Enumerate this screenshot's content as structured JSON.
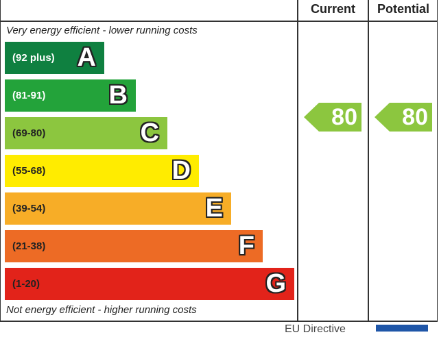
{
  "columns": {
    "current": "Current",
    "potential": "Potential"
  },
  "notes": {
    "top": "Very energy efficient - lower running costs",
    "bottom": "Not energy efficient - higher running costs"
  },
  "footer": {
    "partial_text": "EU Directive"
  },
  "chart_data": {
    "type": "bar",
    "title": "",
    "categories": [
      "A",
      "B",
      "C",
      "D",
      "E",
      "F",
      "G"
    ],
    "ranges": [
      "(92 plus)",
      "(81-91)",
      "(69-80)",
      "(55-68)",
      "(39-54)",
      "(21-38)",
      "(1-20)"
    ],
    "colors": [
      "#0f8040",
      "#23a33a",
      "#8cc63f",
      "#ffec00",
      "#f7ad27",
      "#ed6b25",
      "#e2231a"
    ],
    "range_text_colors": [
      "#ffffff",
      "#ffffff",
      "#222222",
      "#222222",
      "#222222",
      "#222222",
      "#222222"
    ],
    "current": {
      "label": "Current",
      "value": 80,
      "band": "C",
      "color": "#8cc63f"
    },
    "potential": {
      "label": "Potential",
      "value": 80,
      "band": "C",
      "color": "#8cc63f"
    }
  }
}
